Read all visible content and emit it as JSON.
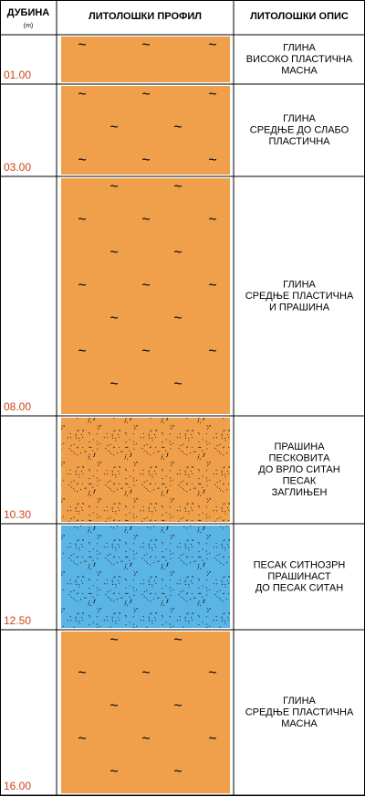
{
  "header": {
    "depth": "ДУБИНА",
    "unit": "(m)",
    "profile": "ЛИТОЛОШКИ ПРОФИЛ",
    "description": "ЛИТОЛОШКИ ОПИС"
  },
  "layers": [
    {
      "depth": "01.00",
      "description": [
        "ГЛИНА",
        "ВИСОКО ПЛАСТИЧНА",
        "МАСНА"
      ]
    },
    {
      "depth": "03.00",
      "description": [
        "ГЛИНА",
        "СРЕДЊЕ ДО СЛАБО",
        "ПЛАСТИЧНА"
      ]
    },
    {
      "depth": "08.00",
      "description": [
        "ГЛИНА",
        "СРЕДЊЕ ПЛАСТИЧНА",
        "И ПРАШИНА"
      ]
    },
    {
      "depth": "10.30",
      "description": [
        "ПРАШИНА",
        "ПЕСКОВИТА",
        "ДО ВРЛО СИТАН",
        "ПЕСАК",
        "ЗАГЛИЊЕН"
      ]
    },
    {
      "depth": "12.50",
      "description": [
        "ПЕСАК СИТНОЗРН",
        "ПРАШИНАСТ",
        "ДО ПЕСАК СИТАН"
      ]
    },
    {
      "depth": "16.00",
      "description": [
        "ГЛИНА",
        "СРЕДЊЕ ПЛАСТИЧНА",
        "МАСНА"
      ]
    }
  ]
}
